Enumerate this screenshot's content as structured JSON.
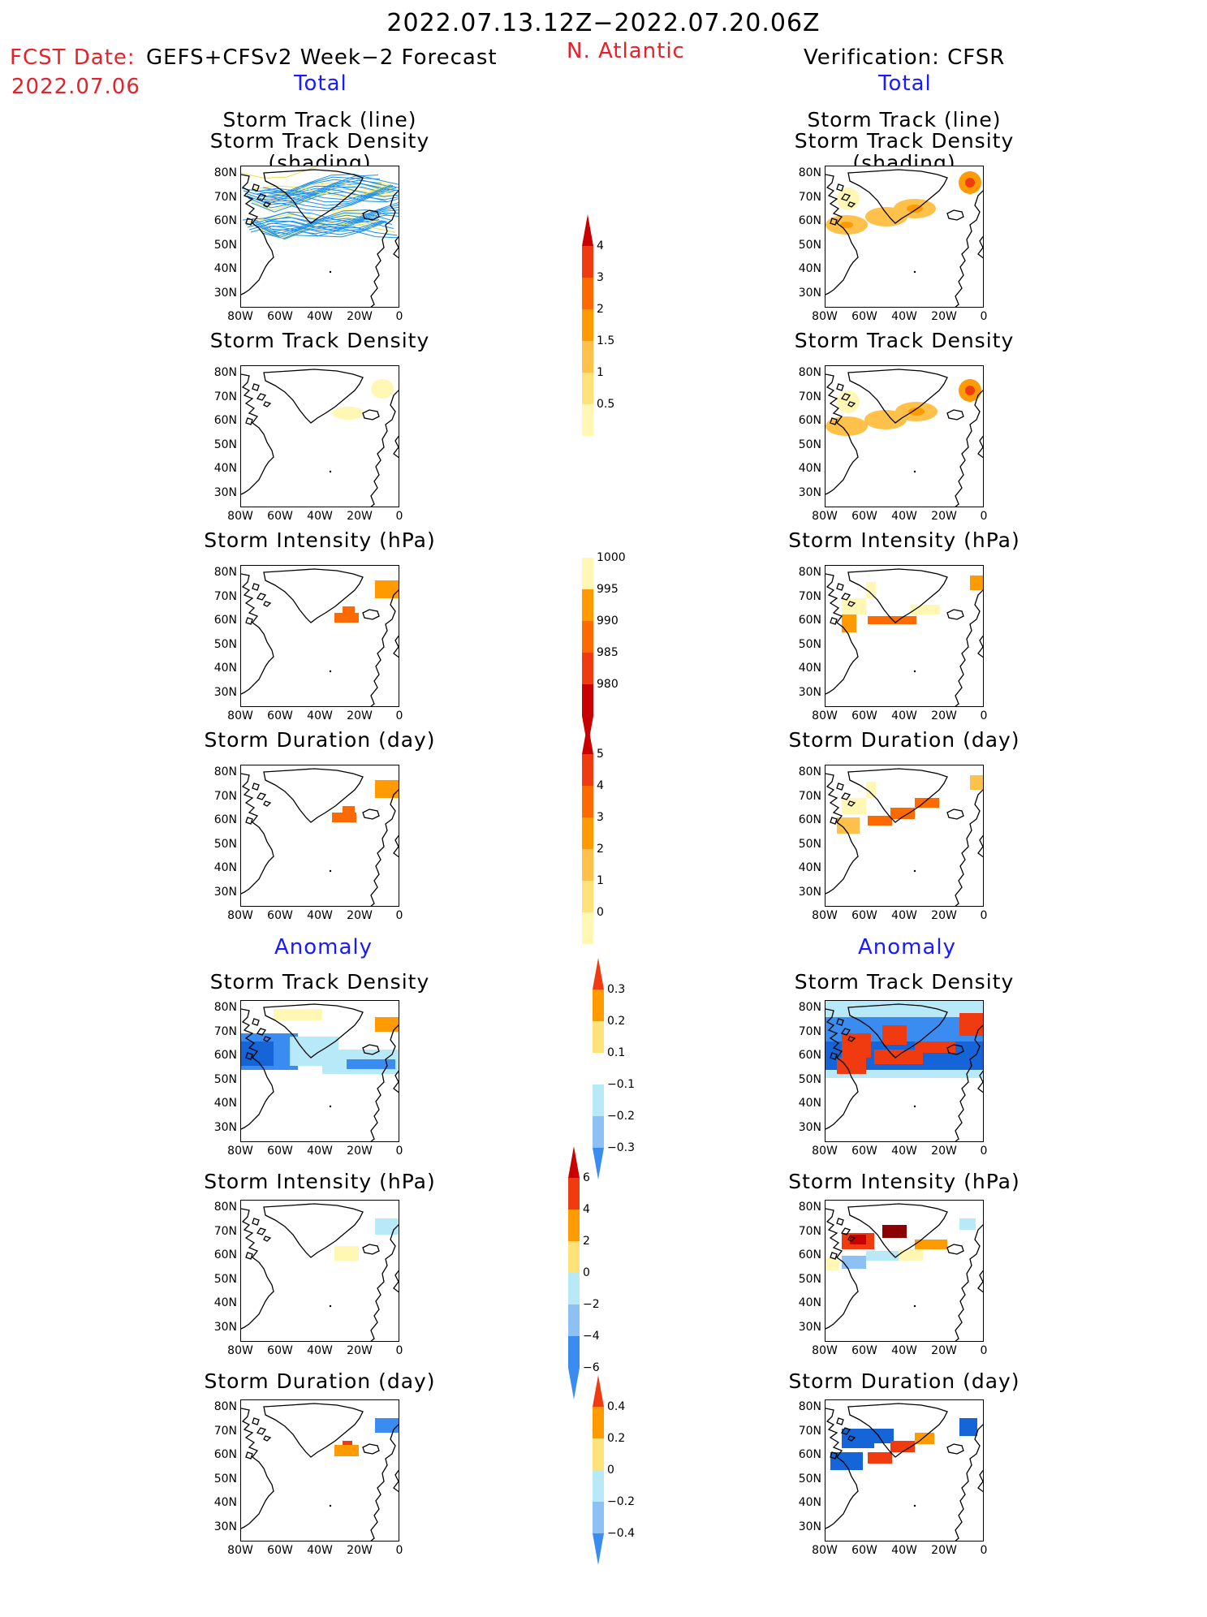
{
  "header": {
    "date_range": "2022.07.13.12Z−2022.07.20.06Z",
    "fcst_label": "FCST Date:",
    "fcst_model": "GEFS+CFSv2 Week−2 Forecast",
    "fcst_date": "2022.07.06",
    "region": "N. Atlantic",
    "verification": "Verification: CFSR"
  },
  "sections": {
    "total": "Total",
    "anomaly": "Anomaly"
  },
  "panel_titles": {
    "track_line": "Storm Track (line)",
    "track_density_shading": "Storm Track Density (shading)",
    "track_density": "Storm Track Density",
    "intensity": "Storm Intensity (hPa)",
    "duration": "Storm Duration (day)"
  },
  "axes": {
    "lat_labels": [
      "80N",
      "70N",
      "60N",
      "50N",
      "40N",
      "30N"
    ],
    "lon_labels": [
      "80W",
      "60W",
      "40W",
      "20W",
      "0"
    ]
  },
  "colorbars": {
    "density": [
      "4",
      "3",
      "2",
      "1.5",
      "1",
      "0.5"
    ],
    "intensity": [
      "1000",
      "995",
      "990",
      "985",
      "980"
    ],
    "duration": [
      "5",
      "4",
      "3",
      "2",
      "1",
      "0"
    ],
    "density_anom": [
      "0.3",
      "0.2",
      "0.1",
      "−0.1",
      "−0.2",
      "−0.3"
    ],
    "intensity_anom": [
      "6",
      "4",
      "2",
      "0",
      "−2",
      "−4",
      "−6"
    ],
    "duration_anom": [
      "0.4",
      "0.2",
      "0",
      "−0.2",
      "−0.4"
    ]
  },
  "colors": {
    "yellow_light": "#fff7b3",
    "yellow": "#ffe27a",
    "orange_light": "#ffc14a",
    "orange": "#ff9b00",
    "orange_dark": "#ff6a00",
    "red": "#f03a10",
    "dark_red": "#c80000",
    "maroon": "#8b0000",
    "blue_light": "#b7e9f8",
    "blue_mid": "#8ec1f3",
    "blue": "#3a8cf0",
    "blue_dark": "#1565d8",
    "track_blue": "#1a8fe8"
  }
}
